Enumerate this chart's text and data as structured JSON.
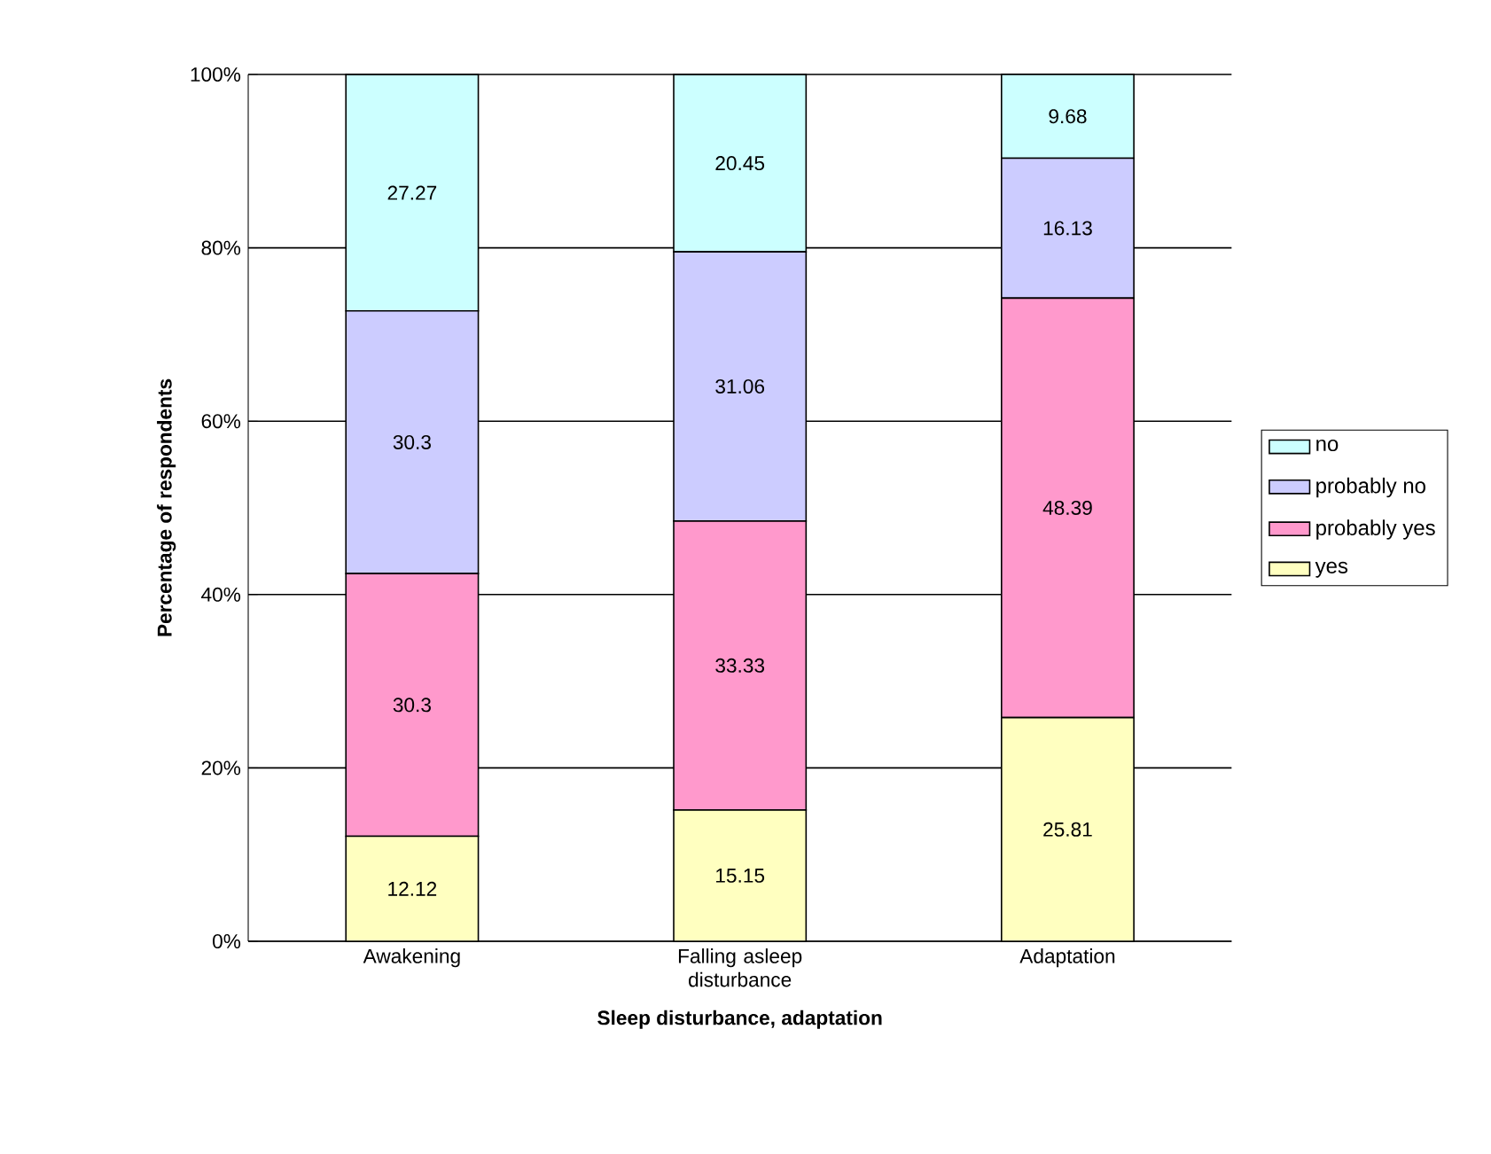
{
  "chart_data": {
    "type": "bar",
    "stacked": true,
    "xlabel": "Sleep disturbance, adaptation",
    "ylabel": "Percentage of respondents",
    "categories": [
      "Awakening",
      "Falling asleep disturbance",
      "Adaptation"
    ],
    "series": [
      {
        "name": "yes",
        "color": "#ffffc0",
        "values": [
          12.12,
          15.15,
          25.81
        ]
      },
      {
        "name": "probably yes",
        "color": "#ff99cc",
        "values": [
          30.3,
          33.33,
          48.39
        ]
      },
      {
        "name": "probably no",
        "color": "#ccccff",
        "values": [
          30.3,
          31.06,
          16.13
        ]
      },
      {
        "name": "no",
        "color": "#ccffff",
        "values": [
          27.27,
          20.45,
          9.68
        ]
      }
    ],
    "ylim": [
      0,
      100
    ],
    "yticks": [
      {
        "value": 0,
        "label": "0%"
      },
      {
        "value": 20,
        "label": "20%"
      },
      {
        "value": 40,
        "label": "40%"
      },
      {
        "value": 60,
        "label": "60%"
      },
      {
        "value": 80,
        "label": "80%"
      },
      {
        "value": 100,
        "label": "100%"
      }
    ],
    "grid": "y",
    "legend": "right",
    "data_labels": true
  }
}
